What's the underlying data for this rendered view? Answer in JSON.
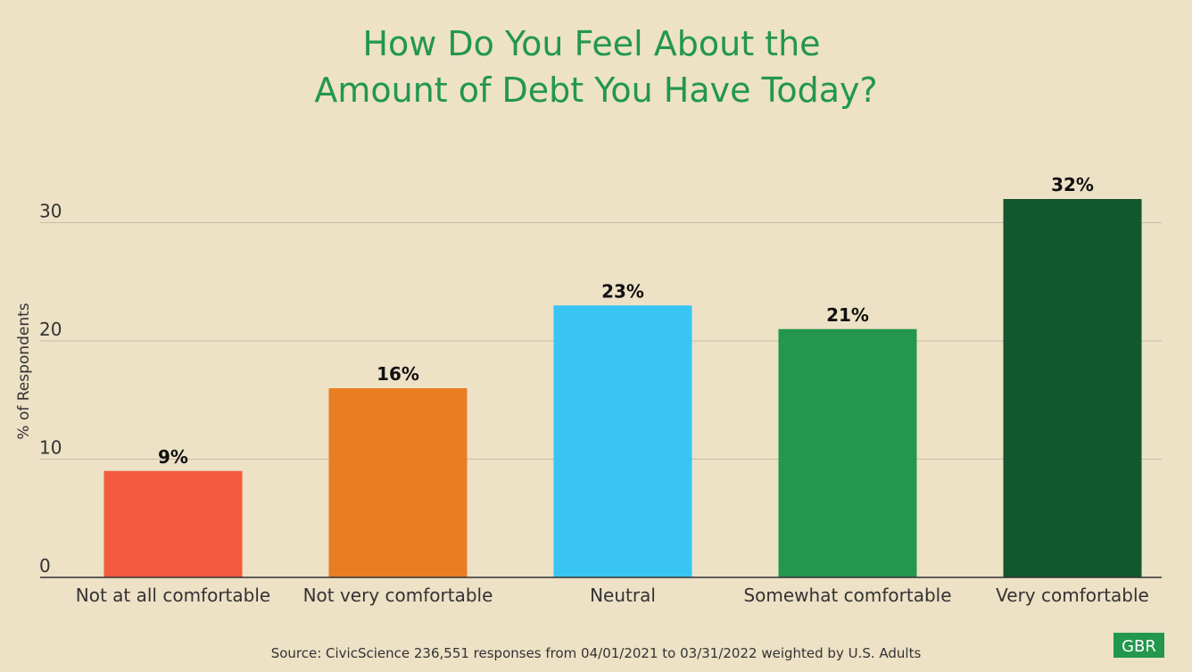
{
  "chart_data": {
    "type": "bar",
    "title_lines": [
      "How Do You Feel About the",
      "Amount of Debt You Have Today?"
    ],
    "categories": [
      "Not at all comfortable",
      "Not very comfortable",
      "Neutral",
      "Somewhat comfortable",
      "Very comfortable"
    ],
    "values": [
      9,
      16,
      23,
      21,
      32
    ],
    "value_labels": [
      "9%",
      "16%",
      "23%",
      "21%",
      "32%"
    ],
    "colors": [
      "#f35a3e",
      "#e87e21",
      "#38c5f3",
      "#22974d",
      "#12572e"
    ],
    "xlabel": "",
    "ylabel": "% of Respondents",
    "ylim": [
      0,
      35
    ],
    "yticks": [
      0,
      10,
      20,
      30
    ],
    "grid": true,
    "legend": "none"
  },
  "source": "Source: CivicScience 236,551 responses from 04/01/2021 to 03/31/2022 weighted by U.S. Adults",
  "logo": {
    "text": "GBR",
    "color": "#22974d"
  },
  "theme": {
    "background": "#ede1c6",
    "title_color": "#22974d",
    "grid_color": "#c9bea6",
    "axis_color": "#333333"
  }
}
